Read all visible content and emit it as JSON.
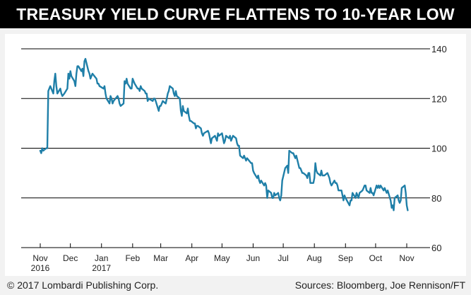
{
  "header": {
    "title": "TREASURY YIELD CURVE FLATTENS TO 10-YEAR LOW"
  },
  "footer": {
    "copyright": "© 2017 Lombardi Publishing Corp.",
    "sources": "Sources: Bloomberg, Joe Rennison/FT"
  },
  "colors": {
    "line": "#1f7fa8",
    "title_background": "#000000",
    "title_text": "#ffffff",
    "page_background": "#f2f2f2",
    "plot_background": "#ffffff",
    "gridline": "#000000"
  },
  "chart_data": {
    "type": "line",
    "title": "TREASURY YIELD CURVE FLATTENS TO 10-YEAR LOW",
    "xlabel": "",
    "ylabel": "",
    "ylim": [
      60,
      140
    ],
    "y_ticks": [
      60,
      80,
      100,
      120,
      140
    ],
    "y_axis_side": "right",
    "grid": "horizontal",
    "x_ticks": [
      {
        "label": "Nov",
        "sublabel": "2016",
        "date": "2016-11-01"
      },
      {
        "label": "Dec",
        "sublabel": "",
        "date": "2016-12-01"
      },
      {
        "label": "Jan",
        "sublabel": "2017",
        "date": "2017-01-01"
      },
      {
        "label": "Feb",
        "sublabel": "",
        "date": "2017-02-01"
      },
      {
        "label": "Mar",
        "sublabel": "",
        "date": "2017-03-01"
      },
      {
        "label": "Apr",
        "sublabel": "",
        "date": "2017-04-01"
      },
      {
        "label": "May",
        "sublabel": "",
        "date": "2017-05-01"
      },
      {
        "label": "Jun",
        "sublabel": "",
        "date": "2017-06-01"
      },
      {
        "label": "Jul",
        "sublabel": "",
        "date": "2017-07-01"
      },
      {
        "label": "Aug",
        "sublabel": "",
        "date": "2017-08-01"
      },
      {
        "label": "Sep",
        "sublabel": "",
        "date": "2017-09-01"
      },
      {
        "label": "Oct",
        "sublabel": "",
        "date": "2017-10-01"
      },
      {
        "label": "Nov",
        "sublabel": "",
        "date": "2017-11-01"
      }
    ],
    "series": [
      {
        "x": [
          "2016-11-01",
          "2016-11-02",
          "2016-11-03",
          "2016-11-04",
          "2016-11-07",
          "2016-11-08",
          "2016-11-09",
          "2016-11-10",
          "2016-11-11",
          "2016-11-14",
          "2016-11-15",
          "2016-11-16",
          "2016-11-17",
          "2016-11-18",
          "2016-11-21",
          "2016-11-22",
          "2016-11-23",
          "2016-11-25",
          "2016-11-28",
          "2016-11-29",
          "2016-11-30",
          "2016-12-01",
          "2016-12-02",
          "2016-12-05",
          "2016-12-06",
          "2016-12-07",
          "2016-12-08",
          "2016-12-09",
          "2016-12-12",
          "2016-12-13",
          "2016-12-14",
          "2016-12-15",
          "2016-12-16",
          "2016-12-19",
          "2016-12-20",
          "2016-12-21",
          "2016-12-22",
          "2016-12-23",
          "2016-12-27",
          "2016-12-28",
          "2016-12-29",
          "2016-12-30",
          "2017-01-03",
          "2017-01-04",
          "2017-01-05",
          "2017-01-06",
          "2017-01-09",
          "2017-01-10",
          "2017-01-11",
          "2017-01-12",
          "2017-01-13",
          "2017-01-17",
          "2017-01-18",
          "2017-01-19",
          "2017-01-20",
          "2017-01-23",
          "2017-01-24",
          "2017-01-25",
          "2017-01-26",
          "2017-01-27",
          "2017-01-30",
          "2017-01-31",
          "2017-02-01",
          "2017-02-02",
          "2017-02-03",
          "2017-02-06",
          "2017-02-07",
          "2017-02-08",
          "2017-02-09",
          "2017-02-10",
          "2017-02-13",
          "2017-02-14",
          "2017-02-15",
          "2017-02-16",
          "2017-02-17",
          "2017-02-21",
          "2017-02-22",
          "2017-02-23",
          "2017-02-24",
          "2017-02-27",
          "2017-02-28",
          "2017-03-01",
          "2017-03-02",
          "2017-03-03",
          "2017-03-06",
          "2017-03-07",
          "2017-03-08",
          "2017-03-09",
          "2017-03-10",
          "2017-03-13",
          "2017-03-14",
          "2017-03-15",
          "2017-03-16",
          "2017-03-17",
          "2017-03-20",
          "2017-03-21",
          "2017-03-22",
          "2017-03-23",
          "2017-03-24",
          "2017-03-27",
          "2017-03-28",
          "2017-03-29",
          "2017-03-30",
          "2017-03-31",
          "2017-04-03",
          "2017-04-04",
          "2017-04-05",
          "2017-04-06",
          "2017-04-07",
          "2017-04-10",
          "2017-04-11",
          "2017-04-12",
          "2017-04-13",
          "2017-04-17",
          "2017-04-18",
          "2017-04-19",
          "2017-04-20",
          "2017-04-21",
          "2017-04-24",
          "2017-04-25",
          "2017-04-26",
          "2017-04-27",
          "2017-04-28",
          "2017-05-01",
          "2017-05-02",
          "2017-05-03",
          "2017-05-04",
          "2017-05-05",
          "2017-05-08",
          "2017-05-09",
          "2017-05-10",
          "2017-05-11",
          "2017-05-12",
          "2017-05-15",
          "2017-05-16",
          "2017-05-17",
          "2017-05-18",
          "2017-05-19",
          "2017-05-22",
          "2017-05-23",
          "2017-05-24",
          "2017-05-25",
          "2017-05-26",
          "2017-05-30",
          "2017-05-31",
          "2017-06-01",
          "2017-06-02",
          "2017-06-05",
          "2017-06-06",
          "2017-06-07",
          "2017-06-08",
          "2017-06-09",
          "2017-06-12",
          "2017-06-13",
          "2017-06-14",
          "2017-06-15",
          "2017-06-16",
          "2017-06-19",
          "2017-06-20",
          "2017-06-21",
          "2017-06-22",
          "2017-06-23",
          "2017-06-26",
          "2017-06-27",
          "2017-06-28",
          "2017-06-29",
          "2017-06-30",
          "2017-07-03",
          "2017-07-05",
          "2017-07-06",
          "2017-07-07",
          "2017-07-10",
          "2017-07-11",
          "2017-07-12",
          "2017-07-13",
          "2017-07-14",
          "2017-07-17",
          "2017-07-18",
          "2017-07-19",
          "2017-07-20",
          "2017-07-21",
          "2017-07-24",
          "2017-07-25",
          "2017-07-26",
          "2017-07-27",
          "2017-07-28",
          "2017-07-31",
          "2017-08-01",
          "2017-08-02",
          "2017-08-03",
          "2017-08-04",
          "2017-08-07",
          "2017-08-08",
          "2017-08-09",
          "2017-08-10",
          "2017-08-11",
          "2017-08-14",
          "2017-08-15",
          "2017-08-16",
          "2017-08-17",
          "2017-08-18",
          "2017-08-21",
          "2017-08-22",
          "2017-08-23",
          "2017-08-24",
          "2017-08-25",
          "2017-08-28",
          "2017-08-29",
          "2017-08-30",
          "2017-08-31",
          "2017-09-01",
          "2017-09-05",
          "2017-09-06",
          "2017-09-07",
          "2017-09-08",
          "2017-09-11",
          "2017-09-12",
          "2017-09-13",
          "2017-09-14",
          "2017-09-15",
          "2017-09-18",
          "2017-09-19",
          "2017-09-20",
          "2017-09-21",
          "2017-09-22",
          "2017-09-25",
          "2017-09-26",
          "2017-09-27",
          "2017-09-28",
          "2017-09-29",
          "2017-10-02",
          "2017-10-03",
          "2017-10-04",
          "2017-10-05",
          "2017-10-06",
          "2017-10-09",
          "2017-10-10",
          "2017-10-11",
          "2017-10-12",
          "2017-10-13",
          "2017-10-16",
          "2017-10-17",
          "2017-10-18",
          "2017-10-19",
          "2017-10-20",
          "2017-10-23",
          "2017-10-24",
          "2017-10-25",
          "2017-10-26",
          "2017-10-27",
          "2017-10-30",
          "2017-10-31",
          "2017-11-01",
          "2017-11-02"
        ],
        "values": [
          99,
          98,
          100,
          99,
          100,
          100,
          123,
          124,
          125,
          122,
          127,
          130,
          125,
          122,
          124,
          122,
          121,
          122,
          124,
          130,
          128,
          131,
          129,
          127,
          125,
          130,
          133,
          133,
          131,
          132,
          129,
          135,
          136,
          131,
          130,
          128,
          129,
          130,
          128,
          126,
          126,
          125,
          124,
          125,
          122,
          120,
          118,
          121,
          120,
          118,
          119,
          121,
          120,
          118,
          117,
          118,
          127,
          126,
          128,
          126,
          124,
          124,
          128,
          127,
          126,
          124,
          124,
          123,
          125,
          124,
          123,
          122,
          122,
          119,
          120,
          119,
          120,
          120,
          119,
          115,
          117,
          117,
          118,
          119,
          118,
          120,
          122,
          123,
          125,
          124,
          122,
          121,
          123,
          121,
          120,
          115,
          113,
          117,
          115,
          114,
          116,
          113,
          111,
          111,
          110,
          110,
          108,
          109,
          109,
          108,
          106,
          105,
          106,
          107,
          106,
          104,
          102,
          104,
          105,
          104,
          103,
          106,
          105,
          106,
          104,
          102,
          103,
          105,
          104,
          105,
          103,
          104,
          105,
          104,
          102,
          101,
          101,
          97,
          96,
          97,
          96,
          95,
          96,
          94,
          94,
          91,
          90,
          88,
          89,
          87,
          86,
          87,
          85,
          86,
          85,
          80,
          83,
          82,
          80,
          80,
          82,
          81,
          82,
          80,
          79,
          81,
          87,
          92,
          93,
          90,
          99,
          98,
          98,
          97,
          96,
          97,
          92,
          92,
          91,
          90,
          90,
          89,
          88,
          90,
          90,
          86,
          86,
          88,
          94,
          91,
          90,
          89,
          91,
          89,
          89,
          89,
          90,
          89,
          88,
          86,
          85,
          87,
          86,
          86,
          85,
          83,
          83,
          81,
          79,
          81,
          80,
          77,
          79,
          79,
          82,
          80,
          82,
          81,
          80,
          82,
          83,
          84,
          85,
          85,
          83,
          82,
          84,
          82,
          82,
          81,
          85,
          84,
          85,
          84,
          85,
          83,
          84,
          83,
          82,
          83,
          79,
          76,
          77,
          75,
          80,
          81,
          79,
          78,
          79,
          84,
          85,
          82,
          77,
          75
        ]
      }
    ]
  }
}
